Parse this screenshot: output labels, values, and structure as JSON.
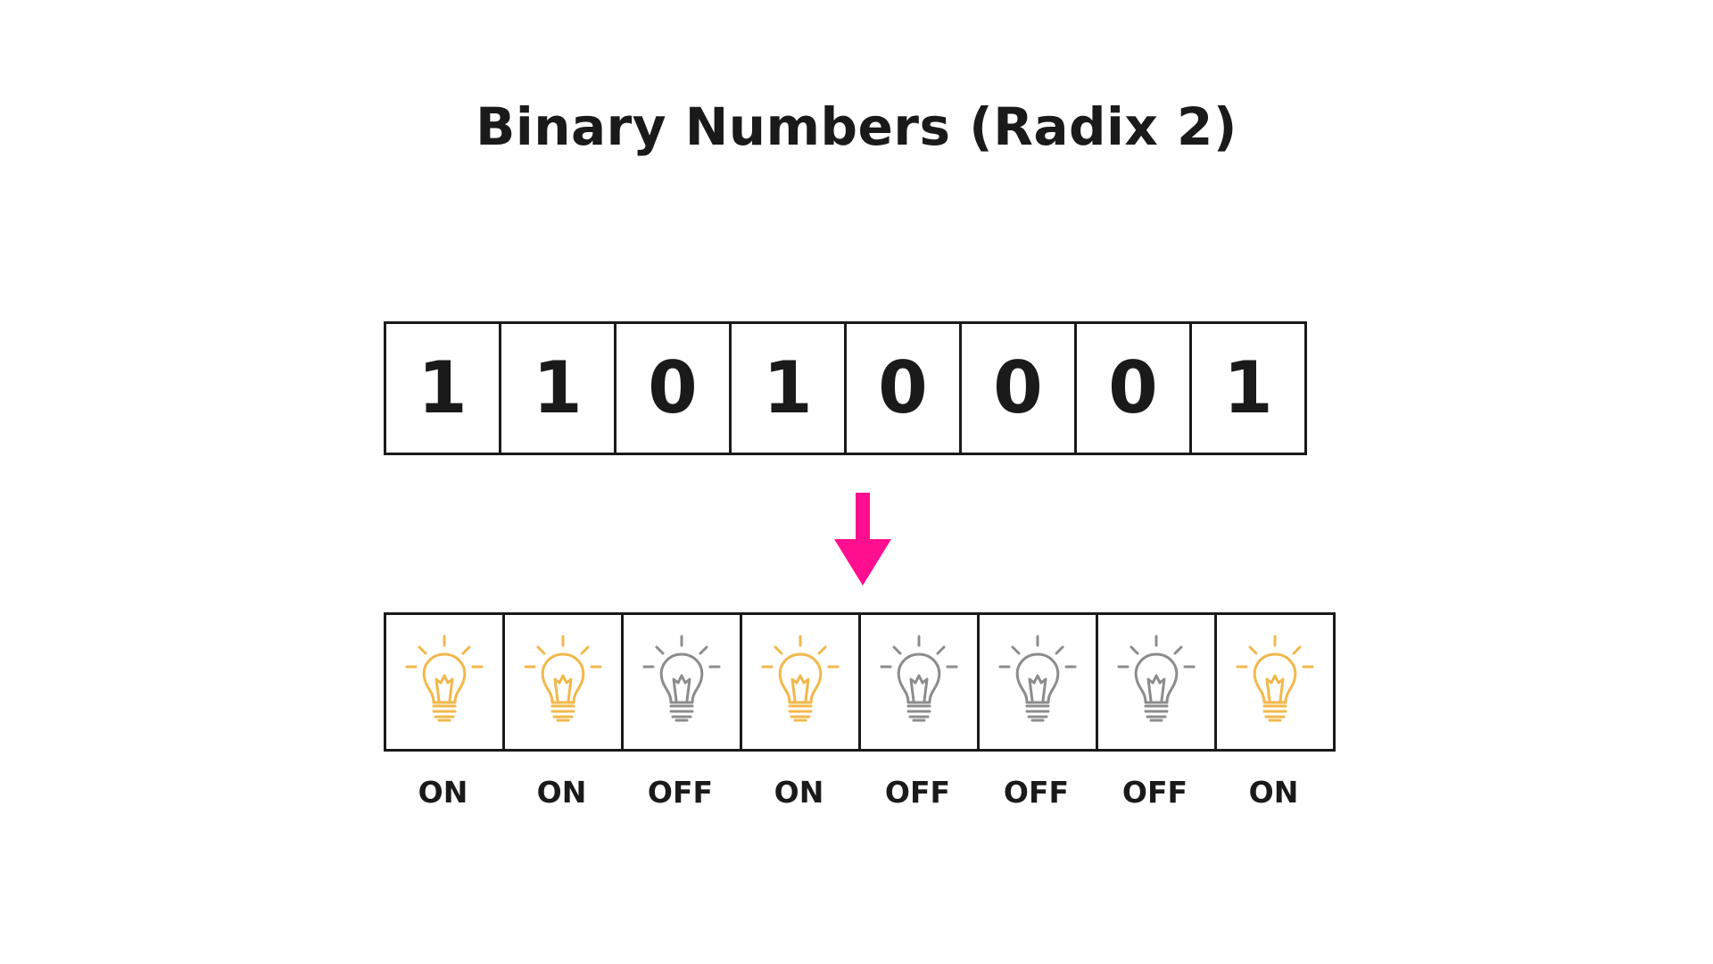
{
  "title": "Binary Numbers (Radix 2)",
  "bits": [
    "1",
    "1",
    "0",
    "1",
    "0",
    "0",
    "0",
    "1"
  ],
  "states": [
    "ON",
    "ON",
    "OFF",
    "ON",
    "OFF",
    "OFF",
    "OFF",
    "ON"
  ],
  "colors": {
    "on": "#f2b84b",
    "off": "#8c8c8c",
    "arrow": "#ff0f8f",
    "border": "#1a1a1a"
  },
  "icons": {
    "arrow": "down-arrow-icon",
    "bulb": "light-bulb-icon"
  }
}
